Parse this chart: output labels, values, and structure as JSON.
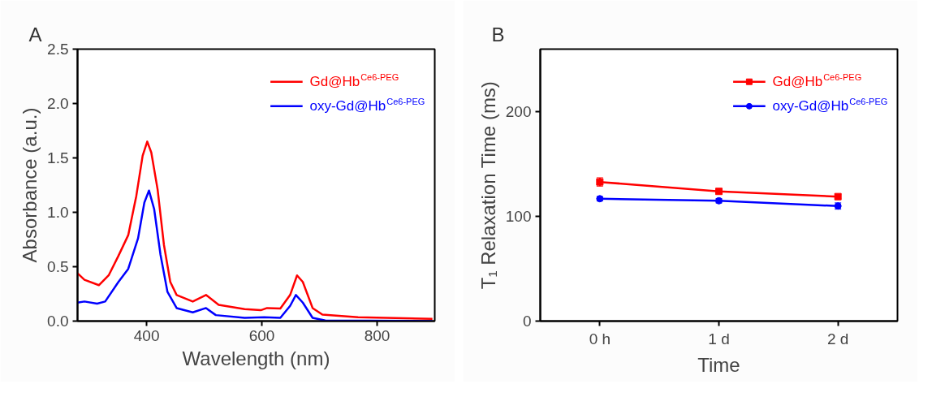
{
  "chart_data": [
    {
      "type": "line",
      "title": "A",
      "xlabel": "Wavelength (nm)",
      "ylabel": "Absorbance (a.u.)",
      "xlim": [
        280,
        900
      ],
      "ylim": [
        0,
        2.5
      ],
      "xticks": [
        400,
        600,
        800
      ],
      "yticks": [
        {
          "value": 0,
          "label": "0.0"
        },
        0.5,
        {
          "value": 1,
          "label": "1.0"
        },
        1.5,
        {
          "value": 2,
          "label": "2.0"
        },
        2.5
      ],
      "grid": false,
      "legend": "top right",
      "marker": "none",
      "line_style": "solid",
      "series": [
        {
          "name": "Gd@Hb$^{Ce6-PEG}$",
          "color": "#ff0000",
          "x": [
            280,
            292,
            317,
            334,
            351,
            368,
            382,
            393,
            401,
            408,
            419,
            430,
            441,
            452,
            480,
            503,
            525,
            570,
            598,
            609,
            632,
            649,
            661,
            671,
            688,
            705,
            767,
            896
          ],
          "values": [
            0.44,
            0.38,
            0.33,
            0.42,
            0.6,
            0.79,
            1.15,
            1.52,
            1.65,
            1.55,
            1.21,
            0.7,
            0.36,
            0.24,
            0.18,
            0.24,
            0.15,
            0.11,
            0.1,
            0.12,
            0.115,
            0.24,
            0.42,
            0.36,
            0.12,
            0.06,
            0.035,
            0.02
          ]
        },
        {
          "name": "oxy-Gd@Hb$^{Ce6-PEG}$",
          "color": "#0000ff",
          "x": [
            280,
            292,
            314,
            328,
            351,
            368,
            385,
            396,
            404,
            413,
            424,
            436,
            452,
            480,
            503,
            520,
            570,
            604,
            632,
            649,
            659,
            671,
            688,
            710,
            896
          ],
          "values": [
            0.17,
            0.18,
            0.16,
            0.18,
            0.36,
            0.48,
            0.76,
            1.09,
            1.2,
            1.03,
            0.61,
            0.27,
            0.12,
            0.08,
            0.12,
            0.055,
            0.03,
            0.036,
            0.03,
            0.14,
            0.24,
            0.17,
            0.03,
            0.006,
            0.0
          ]
        }
      ]
    },
    {
      "type": "line",
      "title": "B",
      "xlabel": "Time",
      "ylabel": "T₁ Relaxation Time (ms)",
      "categories": [
        "0 h",
        "1 d",
        "2 d"
      ],
      "ylim": [
        0,
        260
      ],
      "yticks": [
        0,
        100,
        200
      ],
      "grid": false,
      "legend": "top right",
      "line_style": "solid",
      "series": [
        {
          "name": "Gd@Hb$^{Ce6-PEG}$",
          "color": "#ff0000",
          "marker": "square",
          "values": [
            133,
            124,
            119
          ],
          "errors": [
            4,
            2,
            2
          ]
        },
        {
          "name": "oxy-Gd@Hb$^{Ce6-PEG}$",
          "color": "#0000ff",
          "marker": "circle",
          "values": [
            117,
            115,
            110
          ],
          "errors": [
            2,
            2,
            3
          ]
        }
      ]
    }
  ]
}
